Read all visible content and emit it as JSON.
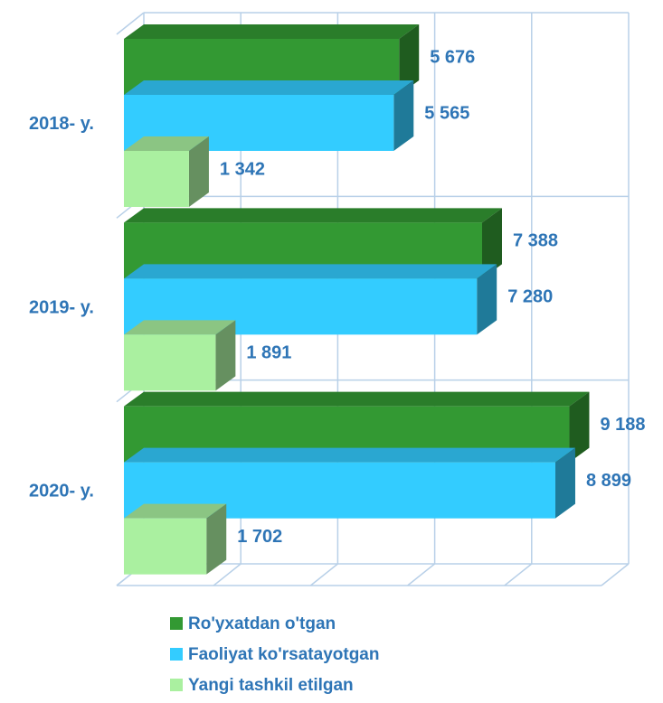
{
  "chart_data": {
    "type": "bar3d_horizontal",
    "categories": [
      "2018- y.",
      "2019- y.",
      "2020- y."
    ],
    "series": [
      {
        "name": "Ro'yxatdan o'tgan",
        "color": "#339933",
        "values": [
          5676,
          7388,
          9188
        ],
        "value_labels": [
          "5 676",
          "7 388",
          "9 188"
        ]
      },
      {
        "name": "Faoliyat ko'rsatayotgan",
        "color": "#33ccff",
        "values": [
          5565,
          7280,
          8899
        ],
        "value_labels": [
          "5 565",
          "7 280",
          "8 899"
        ]
      },
      {
        "name": "Yangi tashkil etilgan",
        "color": "#aaf0a0",
        "values": [
          1342,
          1891,
          1702
        ],
        "value_labels": [
          "1 342",
          "1 891",
          "1 702"
        ]
      }
    ],
    "xlim": [
      0,
      10000
    ],
    "xticks": [
      0,
      2000,
      4000,
      6000,
      8000,
      10000
    ],
    "grid": true
  }
}
